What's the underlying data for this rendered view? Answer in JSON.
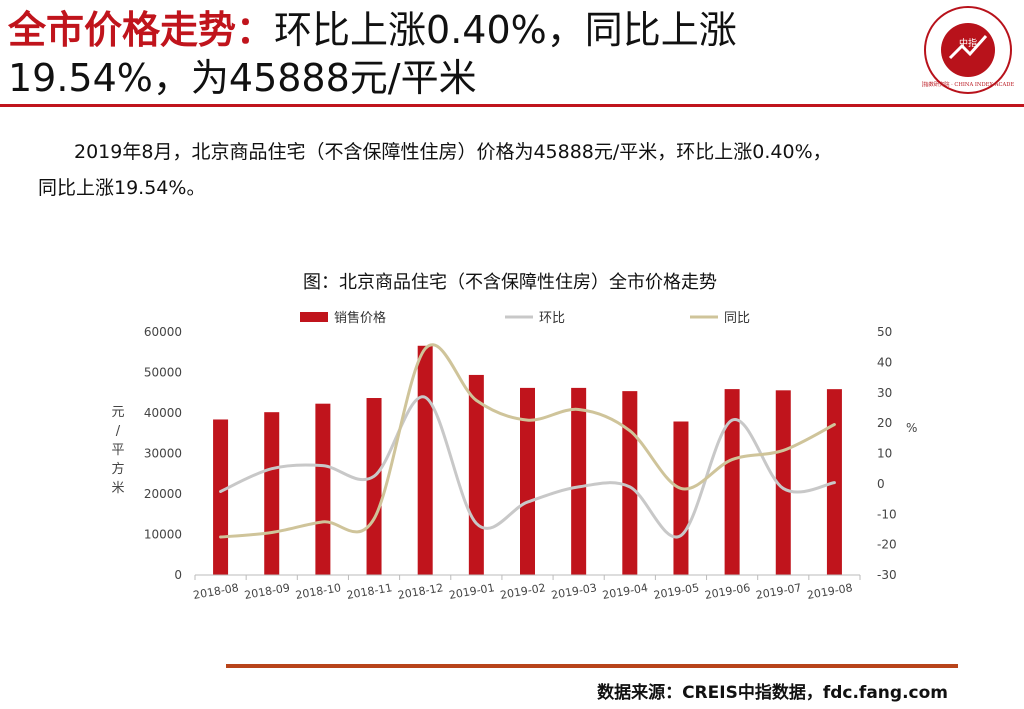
{
  "header": {
    "title_keyword": "全市价格走势：",
    "title_line1_rest": "环比上涨0.40%，同比上涨",
    "title_line2": "19.54%，为45888元/平米"
  },
  "logo": {
    "center_text": "中指",
    "ring_text": "中国指数研究院 · CHINA INDEX ACADEMY"
  },
  "summary": {
    "line1": "2019年8月，北京商品住宅（不含保障性住房）价格为45888元/平米，环比上涨0.40%，",
    "line2": "同比上涨19.54%。"
  },
  "chart_data": {
    "type": "bar+line",
    "title": "图：北京商品住宅（不含保障性住房）全市价格走势",
    "categories": [
      "2018-08",
      "2018-09",
      "2018-10",
      "2018-11",
      "2018-12",
      "2019-01",
      "2019-02",
      "2019-03",
      "2019-04",
      "2019-05",
      "2019-06",
      "2019-07",
      "2019-08"
    ],
    "series": [
      {
        "name": "销售价格",
        "type": "bar",
        "axis": "left",
        "color": "#c0141c",
        "values": [
          38400,
          40200,
          42300,
          43700,
          56600,
          49400,
          46200,
          46200,
          45400,
          37900,
          45900,
          45600,
          45888
        ]
      },
      {
        "name": "环比",
        "type": "line",
        "axis": "right",
        "color": "#c8c8c8",
        "values": [
          -2.5,
          5,
          6,
          2.5,
          28.5,
          -13,
          -6,
          -1,
          -1,
          -17,
          21,
          -1.5,
          0.4
        ]
      },
      {
        "name": "同比",
        "type": "line",
        "axis": "right",
        "color": "#cfc49a",
        "values": [
          -17.5,
          -16,
          -12.5,
          -11.5,
          44.5,
          27.5,
          21,
          24.5,
          17.5,
          -1.5,
          8,
          11,
          19.54
        ]
      }
    ],
    "y_left": {
      "min": 0,
      "max": 60000,
      "ticks": [
        0,
        10000,
        20000,
        30000,
        40000,
        50000,
        60000
      ],
      "label_chars": [
        "元",
        "/",
        "平",
        "方",
        "米"
      ]
    },
    "y_right": {
      "min": -30,
      "max": 50,
      "ticks": [
        -30,
        -20,
        -10,
        0,
        10,
        20,
        30,
        40,
        50
      ],
      "label": "%"
    },
    "legend": "top",
    "grid": false
  },
  "footer": {
    "source": "数据来源：CREIS中指数据，fdc.fang.com"
  }
}
